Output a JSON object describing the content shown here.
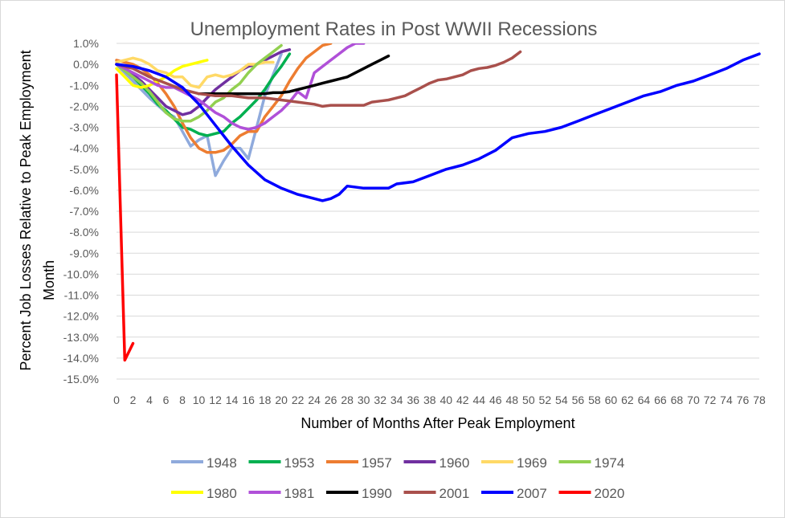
{
  "chart_data": {
    "type": "line",
    "title": "Unemployment  Rates in Post WWII Recessions",
    "xlabel": "Number of Months After Peak Employment",
    "ylabel_line1": "Percent Job Losses Relative to Peak Employment",
    "ylabel_line2": "Month",
    "xlim": [
      0,
      78
    ],
    "ylim": [
      -15,
      1
    ],
    "grid": "horizontal",
    "legend_position": "bottom",
    "x_tick_labels": [
      "0",
      "2",
      "4",
      "6",
      "8",
      "10",
      "12",
      "14",
      "16",
      "18",
      "20",
      "22",
      "24",
      "26",
      "28",
      "30",
      "32",
      "34",
      "36",
      "38",
      "40",
      "42",
      "44",
      "46",
      "48",
      "50",
      "52",
      "54",
      "56",
      "58",
      "60",
      "62",
      "64",
      "66",
      "68",
      "70",
      "72",
      "74",
      "76",
      "78"
    ],
    "y_tick_labels": [
      "1.0%",
      "0.0%",
      "-1.0%",
      "-2.0%",
      "-3.0%",
      "-4.0%",
      "-5.0%",
      "-6.0%",
      "-7.0%",
      "-8.0%",
      "-9.0%",
      "-10.0%",
      "-11.0%",
      "-12.0%",
      "-13.0%",
      "-14.0%",
      "-15.0%"
    ],
    "series": [
      {
        "name": "1948",
        "color": "#8faadc",
        "x": [
          0,
          2,
          4,
          6,
          7,
          8,
          9,
          10,
          11,
          12,
          13,
          14,
          15,
          16,
          17,
          18,
          19,
          20
        ],
        "y": [
          0.0,
          -0.8,
          -1.6,
          -2.3,
          -2.5,
          -3.2,
          -3.9,
          -3.6,
          -3.4,
          -5.3,
          -4.6,
          -4.0,
          -4.0,
          -4.5,
          -3.0,
          -1.5,
          -0.5,
          0.5
        ]
      },
      {
        "name": "1953",
        "color": "#00b050",
        "x": [
          0,
          1,
          2,
          3,
          4,
          5,
          6,
          7,
          8,
          9,
          10,
          11,
          12,
          13,
          14,
          15,
          16,
          17,
          18,
          19,
          20,
          21
        ],
        "y": [
          0.0,
          -0.3,
          -0.6,
          -1.0,
          -1.4,
          -1.9,
          -2.2,
          -2.6,
          -3.0,
          -3.1,
          -3.3,
          -3.4,
          -3.3,
          -3.2,
          -2.8,
          -2.5,
          -2.1,
          -1.7,
          -1.2,
          -0.6,
          -0.1,
          0.5
        ]
      },
      {
        "name": "1957",
        "color": "#ed7d31",
        "x": [
          0,
          1,
          2,
          3,
          4,
          5,
          6,
          7,
          8,
          9,
          10,
          11,
          12,
          13,
          14,
          15,
          16,
          17,
          18,
          19,
          20,
          21,
          22,
          23,
          24,
          25,
          26
        ],
        "y": [
          0.2,
          0.1,
          0.0,
          -0.2,
          -0.5,
          -0.9,
          -1.4,
          -2.0,
          -2.8,
          -3.5,
          -4.0,
          -4.2,
          -4.2,
          -4.1,
          -3.8,
          -3.4,
          -3.2,
          -3.2,
          -2.5,
          -2.0,
          -1.5,
          -0.8,
          -0.2,
          0.3,
          0.6,
          0.9,
          1.0
        ]
      },
      {
        "name": "1960",
        "color": "#7030a0",
        "x": [
          0,
          1,
          2,
          3,
          4,
          5,
          6,
          7,
          8,
          9,
          10,
          11,
          12,
          13,
          14,
          15,
          16,
          17,
          18,
          19,
          20,
          21
        ],
        "y": [
          0.0,
          -0.2,
          -0.5,
          -0.8,
          -1.2,
          -1.6,
          -2.0,
          -2.2,
          -2.4,
          -2.3,
          -2.0,
          -1.6,
          -1.2,
          -0.9,
          -0.6,
          -0.3,
          -0.1,
          0.0,
          0.2,
          0.4,
          0.6,
          0.7
        ]
      },
      {
        "name": "1969",
        "color": "#ffd966",
        "x": [
          0,
          1,
          2,
          3,
          4,
          5,
          6,
          7,
          8,
          9,
          10,
          11,
          12,
          13,
          14,
          15,
          16,
          17,
          18,
          19
        ],
        "y": [
          0.1,
          0.2,
          0.3,
          0.2,
          0.0,
          -0.3,
          -0.4,
          -0.6,
          -0.6,
          -1.0,
          -1.1,
          -0.6,
          -0.5,
          -0.6,
          -0.5,
          -0.3,
          0.0,
          0.0,
          0.1,
          0.1
        ]
      },
      {
        "name": "1974",
        "color": "#92d050",
        "x": [
          0,
          1,
          2,
          3,
          4,
          5,
          6,
          7,
          8,
          9,
          10,
          11,
          12,
          13,
          14,
          15,
          16,
          17,
          18,
          19,
          20
        ],
        "y": [
          0.0,
          -0.3,
          -0.6,
          -0.9,
          -1.3,
          -1.8,
          -2.3,
          -2.6,
          -2.7,
          -2.7,
          -2.5,
          -2.2,
          -1.8,
          -1.6,
          -1.2,
          -0.9,
          -0.4,
          0.0,
          0.3,
          0.6,
          0.9
        ]
      },
      {
        "name": "1980",
        "color": "#ffff00",
        "x": [
          0,
          1,
          2,
          3,
          4,
          5,
          6,
          7,
          8,
          9,
          10,
          11
        ],
        "y": [
          -0.2,
          -0.6,
          -1.0,
          -1.1,
          -1.0,
          -0.8,
          -0.6,
          -0.3,
          -0.1,
          0.0,
          0.1,
          0.2
        ]
      },
      {
        "name": "1981",
        "color": "#b050d8",
        "x": [
          0,
          1,
          2,
          3,
          4,
          5,
          6,
          7,
          8,
          9,
          10,
          11,
          12,
          13,
          14,
          15,
          16,
          17,
          18,
          19,
          20,
          21,
          22,
          23,
          24,
          25,
          26,
          27,
          28,
          29,
          30
        ],
        "y": [
          0.0,
          -0.2,
          -0.4,
          -0.6,
          -0.8,
          -1.0,
          -1.1,
          -1.1,
          -1.3,
          -1.5,
          -1.7,
          -2.0,
          -2.3,
          -2.5,
          -2.8,
          -3.0,
          -3.1,
          -3.0,
          -2.8,
          -2.5,
          -2.2,
          -1.8,
          -1.3,
          -1.6,
          -0.4,
          -0.1,
          0.2,
          0.5,
          0.8,
          1.0,
          1.0
        ]
      },
      {
        "name": "1990",
        "color": "#000000",
        "x": [
          10,
          11,
          12,
          13,
          14,
          15,
          16,
          17,
          18,
          19,
          20,
          21,
          22,
          23,
          24,
          25,
          26,
          27,
          28,
          29,
          30,
          31,
          32,
          33
        ],
        "y": [
          -1.4,
          -1.4,
          -1.4,
          -1.4,
          -1.4,
          -1.4,
          -1.4,
          -1.4,
          -1.4,
          -1.35,
          -1.35,
          -1.3,
          -1.2,
          -1.1,
          -1.0,
          -0.9,
          -0.8,
          -0.7,
          -0.6,
          -0.4,
          -0.2,
          0.0,
          0.2,
          0.4
        ]
      },
      {
        "name": "2001",
        "color": "#a9504c",
        "x": [
          0,
          2,
          4,
          6,
          8,
          10,
          12,
          14,
          16,
          18,
          20,
          22,
          24,
          25,
          26,
          28,
          30,
          31,
          32,
          33,
          34,
          35,
          36,
          37,
          38,
          39,
          40,
          41,
          42,
          43,
          44,
          45,
          46,
          47,
          48,
          49
        ],
        "y": [
          0.0,
          -0.2,
          -0.6,
          -0.9,
          -1.2,
          -1.4,
          -1.5,
          -1.5,
          -1.6,
          -1.6,
          -1.7,
          -1.8,
          -1.9,
          -2.0,
          -1.95,
          -1.95,
          -1.95,
          -1.8,
          -1.75,
          -1.7,
          -1.6,
          -1.5,
          -1.3,
          -1.1,
          -0.9,
          -0.75,
          -0.7,
          -0.6,
          -0.5,
          -0.3,
          -0.2,
          -0.15,
          -0.05,
          0.1,
          0.3,
          0.6
        ]
      },
      {
        "name": "2007",
        "color": "#0000ff",
        "x": [
          0,
          2,
          4,
          6,
          8,
          10,
          12,
          14,
          16,
          18,
          20,
          22,
          24,
          25,
          26,
          27,
          28,
          30,
          32,
          33,
          34,
          36,
          38,
          40,
          42,
          44,
          46,
          48,
          50,
          52,
          54,
          56,
          58,
          60,
          62,
          64,
          66,
          68,
          70,
          72,
          74,
          76,
          78
        ],
        "y": [
          0.0,
          -0.1,
          -0.3,
          -0.6,
          -1.1,
          -1.9,
          -2.9,
          -3.9,
          -4.8,
          -5.5,
          -5.9,
          -6.2,
          -6.4,
          -6.5,
          -6.4,
          -6.2,
          -5.8,
          -5.9,
          -5.9,
          -5.9,
          -5.7,
          -5.6,
          -5.3,
          -5.0,
          -4.8,
          -4.5,
          -4.1,
          -3.5,
          -3.3,
          -3.2,
          -3.0,
          -2.7,
          -2.4,
          -2.1,
          -1.8,
          -1.5,
          -1.3,
          -1.0,
          -0.8,
          -0.5,
          -0.2,
          0.2,
          0.5
        ]
      },
      {
        "name": "2020",
        "color": "#ff0000",
        "x": [
          0,
          1,
          2
        ],
        "y": [
          -0.5,
          -14.1,
          -13.3
        ]
      }
    ],
    "legend_rows": [
      [
        "1948",
        "1953",
        "1957",
        "1960",
        "1969",
        "1974"
      ],
      [
        "1980",
        "1981",
        "1990",
        "2001",
        "2007",
        "2020"
      ]
    ]
  }
}
